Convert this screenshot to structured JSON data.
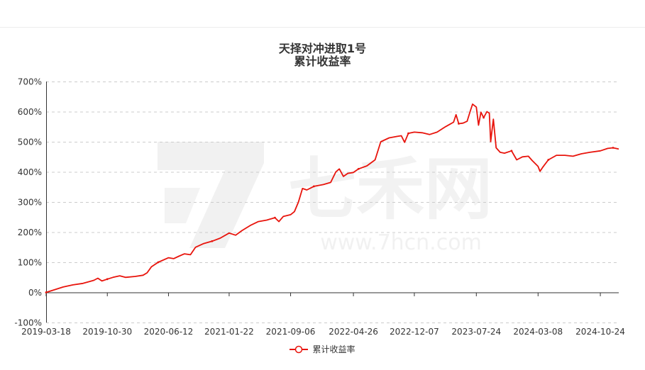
{
  "title": "天择对冲进取1号",
  "subtitle": "累计收益率",
  "legend_label": "累计收益率",
  "watermark": {
    "logo_text": "七禾网",
    "url_text": "www.7hcn.com"
  },
  "colors": {
    "series": "#e8140c",
    "grid": "#cccccc",
    "axis": "#333333",
    "text": "#333333"
  },
  "chart_data": {
    "type": "line",
    "title": "天择对冲进取1号",
    "subtitle": "累计收益率",
    "xlabel": "",
    "ylabel": "",
    "ylim": [
      -100,
      700
    ],
    "yticks": [
      "700%",
      "600%",
      "500%",
      "400%",
      "300%",
      "200%",
      "100%",
      "0%",
      "-100%"
    ],
    "ytick_values": [
      700,
      600,
      500,
      400,
      300,
      200,
      100,
      0,
      -100
    ],
    "xticks": [
      "2019-03-18",
      "2019-10-30",
      "2020-06-12",
      "2021-01-22",
      "2021-09-06",
      "2022-04-26",
      "2022-12-07",
      "2023-07-24",
      "2024-03-08",
      "2024-10-24"
    ],
    "xlim": [
      "2019-03-18",
      "2024-12-31"
    ],
    "grid": true,
    "legend_position": "bottom",
    "series": [
      {
        "name": "累计收益率",
        "unit": "%",
        "points": [
          [
            "2019-03-18",
            0
          ],
          [
            "2019-04-15",
            8
          ],
          [
            "2019-05-20",
            18
          ],
          [
            "2019-06-25",
            25
          ],
          [
            "2019-08-01",
            30
          ],
          [
            "2019-09-10",
            40
          ],
          [
            "2019-09-25",
            47
          ],
          [
            "2019-10-10",
            38
          ],
          [
            "2019-10-30",
            44
          ],
          [
            "2019-11-20",
            50
          ],
          [
            "2019-12-15",
            55
          ],
          [
            "2020-01-05",
            50
          ],
          [
            "2020-02-10",
            53
          ],
          [
            "2020-03-10",
            57
          ],
          [
            "2020-03-25",
            65
          ],
          [
            "2020-04-10",
            85
          ],
          [
            "2020-05-05",
            100
          ],
          [
            "2020-06-12",
            115
          ],
          [
            "2020-07-01",
            112
          ],
          [
            "2020-07-20",
            120
          ],
          [
            "2020-08-10",
            128
          ],
          [
            "2020-09-01",
            125
          ],
          [
            "2020-09-20",
            150
          ],
          [
            "2020-10-20",
            162
          ],
          [
            "2020-11-20",
            170
          ],
          [
            "2020-12-20",
            180
          ],
          [
            "2021-01-22",
            197
          ],
          [
            "2021-02-15",
            190
          ],
          [
            "2021-03-10",
            205
          ],
          [
            "2021-04-10",
            222
          ],
          [
            "2021-05-10",
            235
          ],
          [
            "2021-06-10",
            240
          ],
          [
            "2021-07-10",
            248
          ],
          [
            "2021-07-25",
            235
          ],
          [
            "2021-08-10",
            252
          ],
          [
            "2021-09-06",
            258
          ],
          [
            "2021-09-20",
            268
          ],
          [
            "2021-10-05",
            300
          ],
          [
            "2021-10-20",
            345
          ],
          [
            "2021-11-05",
            340
          ],
          [
            "2021-12-01",
            352
          ],
          [
            "2022-01-05",
            358
          ],
          [
            "2022-02-01",
            365
          ],
          [
            "2022-02-20",
            400
          ],
          [
            "2022-03-05",
            410
          ],
          [
            "2022-03-20",
            385
          ],
          [
            "2022-04-05",
            395
          ],
          [
            "2022-04-26",
            398
          ],
          [
            "2022-05-15",
            410
          ],
          [
            "2022-06-15",
            420
          ],
          [
            "2022-07-15",
            440
          ],
          [
            "2022-08-05",
            500
          ],
          [
            "2022-09-05",
            513
          ],
          [
            "2022-10-05",
            518
          ],
          [
            "2022-10-20",
            520
          ],
          [
            "2022-11-01",
            498
          ],
          [
            "2022-11-15",
            528
          ],
          [
            "2022-12-07",
            532
          ],
          [
            "2023-01-05",
            530
          ],
          [
            "2023-02-01",
            524
          ],
          [
            "2023-03-01",
            532
          ],
          [
            "2023-04-01",
            550
          ],
          [
            "2023-05-01",
            565
          ],
          [
            "2023-05-10",
            590
          ],
          [
            "2023-05-20",
            560
          ],
          [
            "2023-06-05",
            562
          ],
          [
            "2023-06-20",
            568
          ],
          [
            "2023-07-01",
            600
          ],
          [
            "2023-07-10",
            625
          ],
          [
            "2023-07-24",
            615
          ],
          [
            "2023-08-01",
            555
          ],
          [
            "2023-08-10",
            598
          ],
          [
            "2023-08-20",
            580
          ],
          [
            "2023-09-01",
            600
          ],
          [
            "2023-09-10",
            595
          ],
          [
            "2023-09-15",
            500
          ],
          [
            "2023-09-25",
            575
          ],
          [
            "2023-10-05",
            480
          ],
          [
            "2023-10-20",
            465
          ],
          [
            "2023-11-05",
            462
          ],
          [
            "2023-12-01",
            470
          ],
          [
            "2023-12-20",
            440
          ],
          [
            "2024-01-10",
            450
          ],
          [
            "2024-02-01",
            452
          ],
          [
            "2024-02-15",
            438
          ],
          [
            "2024-03-08",
            418
          ],
          [
            "2024-03-15",
            402
          ],
          [
            "2024-03-25",
            415
          ],
          [
            "2024-04-15",
            440
          ],
          [
            "2024-05-15",
            455
          ],
          [
            "2024-06-15",
            455
          ],
          [
            "2024-07-15",
            452
          ],
          [
            "2024-08-15",
            460
          ],
          [
            "2024-09-15",
            465
          ],
          [
            "2024-10-24",
            470
          ],
          [
            "2024-11-20",
            478
          ],
          [
            "2024-12-10",
            480
          ],
          [
            "2024-12-31",
            476
          ]
        ]
      }
    ]
  }
}
